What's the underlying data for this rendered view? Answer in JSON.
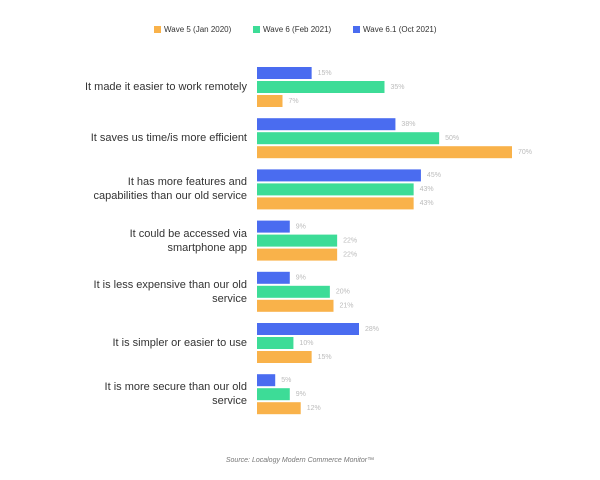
{
  "chart_data": {
    "type": "bar",
    "orientation": "horizontal",
    "categories": [
      "It made it easier to work remotely",
      "It saves us time/is more efficient",
      "It has more features and capabilities than our old service",
      "It could be accessed via smartphone app",
      "It is less expensive than our old service",
      "It is simpler or easier to use",
      "It is more secure than our old service"
    ],
    "series": [
      {
        "name": "Wave 5 (Jan 2020)",
        "color": "#f9b24a",
        "values": [
          7,
          70,
          43,
          22,
          21,
          15,
          12
        ],
        "value_labels": [
          "7%",
          "70%",
          "43%",
          "22%",
          "21%",
          "15%",
          "12%"
        ]
      },
      {
        "name": "Wave 6 (Feb 2021)",
        "color": "#3ddc97",
        "values": [
          35,
          50,
          43,
          22,
          20,
          10,
          9
        ],
        "value_labels": [
          "35%",
          "50%",
          "43%",
          "22%",
          "20%",
          "10%",
          "9%"
        ]
      },
      {
        "name": "Wave 6.1 (Oct 2021)",
        "color": "#4a6cf0",
        "values": [
          15,
          38,
          45,
          9,
          9,
          28,
          5
        ],
        "value_labels": [
          "15%",
          "38%",
          "45%",
          "9%",
          "9%",
          "28%",
          "5%"
        ]
      }
    ],
    "legend": "top",
    "source": "Source: Localogy Modern Commerce Monitor™"
  }
}
